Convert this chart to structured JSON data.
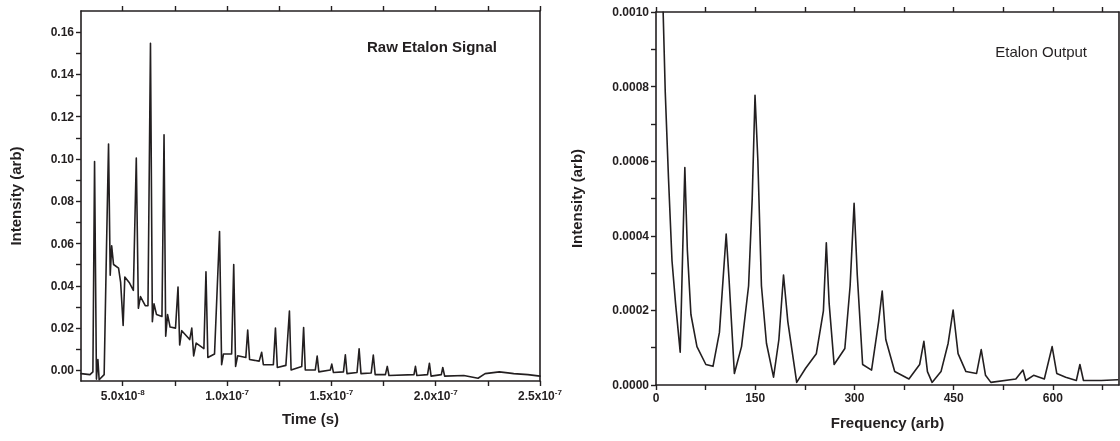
{
  "chart_data": [
    {
      "type": "line",
      "annotations": [
        "Raw Etalon Signal"
      ],
      "xlabel": "Time (s)",
      "ylabel": "Intensity (arb)",
      "xlim": [
        3e-08,
        2.5e-07
      ],
      "ylim": [
        -0.005,
        0.17
      ],
      "xticks": [
        {
          "value": 5e-08,
          "label": "5.0x10$^{-8}$"
        },
        {
          "value": 7.5e-08,
          "label": null
        },
        {
          "value": 1e-07,
          "label": "1.0x10$^{-7}$"
        },
        {
          "value": 1.25e-07,
          "label": null
        },
        {
          "value": 1.5e-07,
          "label": "1.5x10$^{-7}$"
        },
        {
          "value": 1.75e-07,
          "label": null
        },
        {
          "value": 2e-07,
          "label": "2.0x10$^{-7}$"
        },
        {
          "value": 2.25e-07,
          "label": null
        },
        {
          "value": 2.5e-07,
          "label": "2.5x10$^{-7}$"
        }
      ],
      "yticks": [
        {
          "value": 0,
          "label": "0.00"
        },
        {
          "value": 0.01,
          "label": null
        },
        {
          "value": 0.02,
          "label": "0.02"
        },
        {
          "value": 0.03,
          "label": null
        },
        {
          "value": 0.04,
          "label": "0.04"
        },
        {
          "value": 0.05,
          "label": null
        },
        {
          "value": 0.06,
          "label": "0.06"
        },
        {
          "value": 0.07,
          "label": null
        },
        {
          "value": 0.08,
          "label": "0.08"
        },
        {
          "value": 0.09,
          "label": null
        },
        {
          "value": 0.1,
          "label": "0.10"
        },
        {
          "value": 0.11,
          "label": null
        },
        {
          "value": 0.12,
          "label": "0.12"
        },
        {
          "value": 0.13,
          "label": null
        },
        {
          "value": 0.14,
          "label": "0.14"
        },
        {
          "value": 0.15,
          "label": null
        },
        {
          "value": 0.16,
          "label": "0.16"
        }
      ],
      "series": [
        {
          "color": "#231f20",
          "x": [
            3e-08,
            3.43e-08,
            3.57e-08,
            3.65e-08,
            3.74e-08,
            3.81e-08,
            3.87e-08,
            4.11e-08,
            4.22e-08,
            4.32e-08,
            4.4e-08,
            4.47e-08,
            4.56e-08,
            4.8e-08,
            4.9e-08,
            5.02e-08,
            5.1e-08,
            5.31e-08,
            5.51e-08,
            5.65e-08,
            5.75e-08,
            5.85e-08,
            6.08e-08,
            6.21e-08,
            6.33e-08,
            6.42e-08,
            6.5e-08,
            6.62e-08,
            6.88e-08,
            6.98e-08,
            7.06e-08,
            7.15e-08,
            7.27e-08,
            7.53e-08,
            7.65e-08,
            7.73e-08,
            7.83e-08,
            8.21e-08,
            8.31e-08,
            8.4e-08,
            8.52e-08,
            8.89e-08,
            8.99e-08,
            9.08e-08,
            9.4e-08,
            9.64e-08,
            9.74e-08,
            9.83e-08,
            1.022e-07,
            1.032e-07,
            1.041e-07,
            1.051e-07,
            1.09e-07,
            1.099e-07,
            1.108e-07,
            1.154e-07,
            1.166e-07,
            1.174e-07,
            1.222e-07,
            1.232e-07,
            1.241e-07,
            1.282e-07,
            1.299e-07,
            1.307e-07,
            1.358e-07,
            1.367e-07,
            1.375e-07,
            1.423e-07,
            1.432e-07,
            1.44e-07,
            1.495e-07,
            1.502e-07,
            1.51e-07,
            1.558e-07,
            1.567e-07,
            1.575e-07,
            1.623e-07,
            1.633e-07,
            1.642e-07,
            1.691e-07,
            1.701e-07,
            1.71e-07,
            1.759e-07,
            1.768e-07,
            1.776e-07,
            1.896e-07,
            1.903e-07,
            1.91e-07,
            1.961e-07,
            1.97e-07,
            1.978e-07,
            2.027e-07,
            2.034e-07,
            2.043e-07,
            2.135e-07,
            2.203e-07,
            2.237e-07,
            2.305e-07,
            2.374e-07,
            2.442e-07,
            2.5e-07
          ],
          "values": [
            -0.0015,
            -0.002,
            -0.0007,
            0.0988,
            -0.0041,
            0.0052,
            -0.0044,
            -0.002,
            0.0569,
            0.1071,
            0.045,
            0.0589,
            0.0501,
            0.0484,
            0.0416,
            0.0213,
            0.0442,
            0.0416,
            0.0379,
            0.1005,
            0.0294,
            0.0349,
            0.0306,
            0.0306,
            0.1547,
            0.023,
            0.0315,
            0.0264,
            0.0255,
            0.1115,
            0.0162,
            0.0264,
            0.0205,
            0.02,
            0.0394,
            0.012,
            0.0188,
            0.0146,
            0.02,
            0.0069,
            0.0129,
            0.0103,
            0.0467,
            0.0061,
            0.0078,
            0.0657,
            0.0027,
            0.0078,
            0.0078,
            0.0501,
            0.0019,
            0.0069,
            0.0061,
            0.0191,
            0.0052,
            0.0044,
            0.0086,
            0.0027,
            0.0027,
            0.02,
            0.0014,
            0.0024,
            0.0281,
            0.0002,
            0.0019,
            0.0203,
            0.0002,
            0.0002,
            0.0068,
            -0.0007,
            0.0002,
            0.003,
            -0.001,
            -0.0007,
            0.0074,
            -0.0015,
            -0.001,
            0.0102,
            -0.0015,
            -0.0012,
            0.0073,
            -0.002,
            -0.002,
            0.0019,
            -0.0024,
            -0.002,
            0.0019,
            -0.0024,
            -0.002,
            0.0034,
            -0.0027,
            -0.002,
            0.0014,
            -0.0027,
            -0.0024,
            -0.0037,
            -0.0015,
            -0.0007,
            -0.0015,
            -0.002,
            -0.0027
          ]
        }
      ]
    },
    {
      "type": "line",
      "annotations": [
        "Etalon Output"
      ],
      "xlabel": "Frequency (arb)",
      "ylabel": "Intensity (arb)",
      "xlim": [
        0,
        700
      ],
      "ylim": [
        0,
        0.001
      ],
      "xticks": [
        0,
        {
          "value": 75,
          "label": null
        },
        150,
        {
          "value": 225,
          "label": null
        },
        300,
        {
          "value": 375,
          "label": null
        },
        450,
        {
          "value": 525,
          "label": null
        },
        600,
        {
          "value": 675,
          "label": null
        }
      ],
      "yticks": [
        {
          "value": 0,
          "label": "0.0000"
        },
        {
          "value": 0.0001,
          "label": null
        },
        {
          "value": 0.0002,
          "label": "0.0002"
        },
        {
          "value": 0.0003,
          "label": null
        },
        {
          "value": 0.0004,
          "label": "0.0004"
        },
        {
          "value": 0.0005,
          "label": null
        },
        {
          "value": 0.0006,
          "label": "0.0006"
        },
        {
          "value": 0.0007,
          "label": null
        },
        {
          "value": 0.0008,
          "label": "0.0008"
        },
        {
          "value": 0.0009,
          "label": null
        },
        {
          "value": 0.001,
          "label": "0.0010"
        }
      ],
      "series": [
        {
          "color": "#231f20",
          "x": [
            10.8,
            14.0,
            18.9,
            24.2,
            29.6,
            36.6,
            40.4,
            43.6,
            47.4,
            52.8,
            61.9,
            75.4,
            86.2,
            95.9,
            106.1,
            110.4,
            118.5,
            129.3,
            140.0,
            145.4,
            149.7,
            154.0,
            159.4,
            167.0,
            177.7,
            185.8,
            192.8,
            199.3,
            212.7,
            226.2,
            242.4,
            253.1,
            257.5,
            261.8,
            269.3,
            285.5,
            293.5,
            299.5,
            304.3,
            312.4,
            325.9,
            336.6,
            342.0,
            347.4,
            360.9,
            382.4,
            398.6,
            405.0,
            410.4,
            417.4,
            430.9,
            441.7,
            449.2,
            456.7,
            468.6,
            484.7,
            491.7,
            498.2,
            506.3,
            544.0,
            554.8,
            559.1,
            570.9,
            587.1,
            598.9,
            605.9,
            619.4,
            635.5,
            640.9,
            646.3,
            673.3,
            698.0
          ],
          "values": [
            0.001,
            0.000785,
            0.000554,
            0.000333,
            0.000218,
            8.8e-05,
            0.000362,
            0.000583,
            0.000362,
            0.000189,
            0.000103,
            5.5e-05,
            5e-05,
            0.000141,
            0.000405,
            0.000285,
            3.1e-05,
            0.000103,
            0.000266,
            0.000497,
            0.000777,
            0.000602,
            0.000266,
            0.000112,
            2.1e-05,
            0.000122,
            0.000295,
            0.00017,
            7e-06,
            4.5e-05,
            8.4e-05,
            0.000199,
            0.000381,
            0.000218,
            5.5e-05,
            9.8e-05,
            0.000266,
            0.000487,
            0.000295,
            5.5e-05,
            4e-05,
            0.00017,
            0.000252,
            0.000122,
            3.6e-05,
            1.6e-05,
            5.5e-05,
            0.000117,
            3.6e-05,
            7e-06,
            3.6e-05,
            0.000112,
            0.000201,
            8.4e-05,
            3.6e-05,
            3.1e-05,
            9.5e-05,
            2.6e-05,
            7e-06,
            1.6e-05,
            4e-05,
            1.2e-05,
            2.6e-05,
            1.6e-05,
            0.000103,
            3.1e-05,
            2.1e-05,
            1.2e-05,
            5.5e-05,
            1.2e-05,
            1.2e-05,
            1.4e-05
          ]
        }
      ]
    }
  ]
}
